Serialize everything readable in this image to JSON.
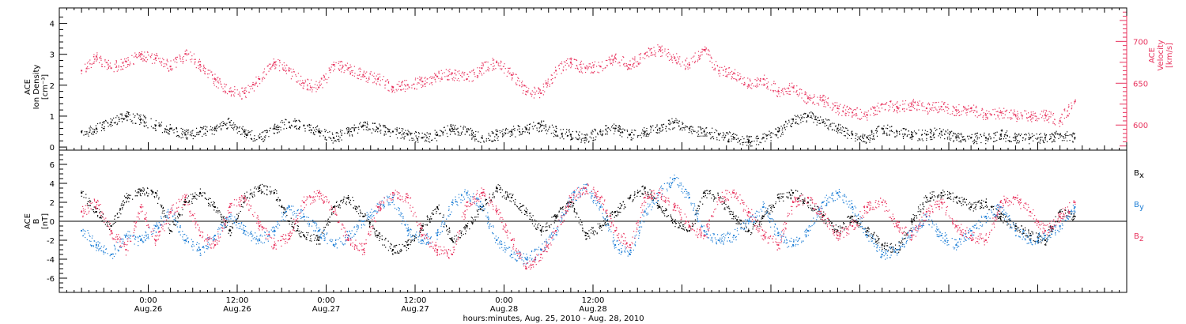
{
  "chart_data": [
    {
      "type": "scatter",
      "panel": "top",
      "ylabel_left": [
        "ACE",
        "Ion Density",
        "[cm⁻³]"
      ],
      "ylabel_right": [
        "ACE",
        "Velocity",
        "[km/s]"
      ],
      "ylim_left": [
        -0.1,
        4.5
      ],
      "ylim_right": [
        570,
        740
      ],
      "yticks_left": [
        "0",
        "1",
        "2",
        "3",
        "4"
      ],
      "yticks_right": [
        "600",
        "650",
        "700"
      ],
      "grid": false,
      "colors": {
        "density": "#000000",
        "velocity": "#e8335e"
      },
      "series": [
        {
          "name": "",
          "axis": "left",
          "color": "#000000",
          "x": [
            -9,
            -7,
            -5,
            -3,
            -1,
            1,
            3,
            5,
            7,
            9,
            11,
            13,
            15,
            17,
            19,
            21,
            23,
            25,
            27,
            29,
            31,
            33,
            35,
            37,
            39,
            41,
            43,
            45,
            47,
            49,
            51,
            53,
            55,
            57,
            59,
            61,
            63,
            65,
            67,
            69,
            71,
            73,
            75,
            77,
            79,
            81,
            83,
            85,
            87,
            89,
            91,
            93,
            95,
            97,
            99,
            101,
            103,
            105,
            107,
            109,
            111,
            113,
            115,
            117,
            119,
            121,
            123,
            125
          ],
          "values": [
            0.5,
            0.6,
            0.8,
            1.0,
            0.9,
            0.7,
            0.6,
            0.4,
            0.5,
            0.6,
            0.8,
            0.5,
            0.3,
            0.6,
            0.8,
            0.7,
            0.5,
            0.3,
            0.5,
            0.7,
            0.6,
            0.5,
            0.4,
            0.3,
            0.4,
            0.6,
            0.5,
            0.3,
            0.4,
            0.5,
            0.6,
            0.7,
            0.5,
            0.4,
            0.3,
            0.5,
            0.6,
            0.4,
            0.5,
            0.6,
            0.8,
            0.6,
            0.5,
            0.4,
            0.3,
            0.2,
            0.3,
            0.5,
            0.9,
            1.0,
            0.8,
            0.6,
            0.4,
            0.3,
            0.6,
            0.5,
            0.4,
            0.4,
            0.5,
            0.3,
            0.3,
            0.3,
            0.4,
            0.3,
            0.3,
            0.3,
            0.4,
            0.3
          ]
        },
        {
          "name": "",
          "axis": "right",
          "color": "#e8335e",
          "x": [
            -9,
            -7,
            -5,
            -3,
            -1,
            1,
            3,
            5,
            7,
            9,
            11,
            13,
            15,
            17,
            19,
            21,
            23,
            25,
            27,
            29,
            31,
            33,
            35,
            37,
            39,
            41,
            43,
            45,
            47,
            49,
            51,
            53,
            55,
            57,
            59,
            61,
            63,
            65,
            67,
            69,
            71,
            73,
            75,
            77,
            79,
            81,
            83,
            85,
            87,
            89,
            91,
            93,
            95,
            97,
            99,
            101,
            103,
            105,
            107,
            109,
            111,
            113,
            115,
            117,
            119,
            121,
            123,
            125
          ],
          "values": [
            665,
            682,
            668,
            676,
            684,
            680,
            670,
            685,
            672,
            655,
            640,
            638,
            655,
            675,
            665,
            650,
            645,
            672,
            668,
            660,
            655,
            645,
            648,
            652,
            658,
            662,
            655,
            668,
            675,
            660,
            640,
            638,
            665,
            675,
            668,
            670,
            680,
            672,
            685,
            690,
            680,
            672,
            690,
            665,
            662,
            648,
            655,
            640,
            645,
            632,
            630,
            620,
            615,
            612,
            625,
            622,
            625,
            620,
            622,
            618,
            620,
            612,
            615,
            612,
            610,
            612,
            605,
            628
          ]
        }
      ]
    },
    {
      "type": "scatter",
      "panel": "bottom",
      "ylabel_left": [
        "ACE",
        "B",
        "[nT]"
      ],
      "ylim": [
        -7.5,
        7.5
      ],
      "yticks": [
        "-6",
        "-4",
        "-2",
        "0",
        "2",
        "4",
        "6"
      ],
      "xlim": [
        -12,
        132
      ],
      "xticks": [
        {
          "at": 0,
          "time": "0:00",
          "date": "Aug.26"
        },
        {
          "at": 12,
          "time": "12:00",
          "date": "Aug.26"
        },
        {
          "at": 24,
          "time": "0:00",
          "date": "Aug.27"
        },
        {
          "at": 36,
          "time": "12:00",
          "date": "Aug.27"
        },
        {
          "at": 48,
          "time": "0:00",
          "date": "Aug.28"
        },
        {
          "at": 60,
          "time": "12:00",
          "date": "Aug.28"
        }
      ],
      "xlabel": "hours:minutes, Aug. 25, 2010 - Aug. 28, 2010",
      "grid": false,
      "series": [
        {
          "name": "Bx",
          "label_main": "B",
          "label_sub": "x",
          "color": "#000000",
          "x": [
            -9,
            -7,
            -5,
            -3,
            -1,
            1,
            3,
            5,
            7,
            9,
            11,
            13,
            15,
            17,
            19,
            21,
            23,
            25,
            27,
            29,
            31,
            33,
            35,
            37,
            39,
            41,
            43,
            45,
            47,
            49,
            51,
            53,
            55,
            57,
            59,
            61,
            63,
            65,
            67,
            69,
            71,
            73,
            75,
            77,
            79,
            81,
            83,
            85,
            87,
            89,
            91,
            93,
            95,
            97,
            99,
            101,
            103,
            105,
            107,
            109,
            111,
            113,
            115,
            117,
            119,
            121,
            123,
            125
          ],
          "values": [
            3.0,
            1.0,
            -0.5,
            2.5,
            3.2,
            3.0,
            -1.0,
            2.0,
            3.0,
            1.5,
            -1.0,
            2.5,
            3.5,
            3.0,
            0.0,
            -1.5,
            -2.0,
            1.5,
            2.5,
            0.5,
            -1.5,
            -3.0,
            -2.5,
            -0.5,
            1.5,
            -2.0,
            -0.5,
            1.5,
            3.5,
            2.5,
            1.0,
            -1.0,
            0.5,
            2.0,
            -1.5,
            -0.5,
            1.0,
            2.5,
            3.5,
            1.5,
            0.0,
            -1.0,
            3.0,
            2.5,
            0.5,
            -1.0,
            0.5,
            2.5,
            3.0,
            2.0,
            0.5,
            -1.0,
            0.5,
            -1.0,
            -2.5,
            -3.0,
            0.0,
            2.5,
            3.0,
            2.5,
            1.5,
            2.0,
            0.5,
            -0.5,
            -1.5,
            -2.0,
            1.0,
            0.5
          ]
        },
        {
          "name": "By",
          "label_main": "B",
          "label_sub": "y",
          "color": "#1f7fd6",
          "x": [
            -9,
            -7,
            -5,
            -3,
            -1,
            1,
            3,
            5,
            7,
            9,
            11,
            13,
            15,
            17,
            19,
            21,
            23,
            25,
            27,
            29,
            31,
            33,
            35,
            37,
            39,
            41,
            43,
            45,
            47,
            49,
            51,
            53,
            55,
            57,
            59,
            61,
            63,
            65,
            67,
            69,
            71,
            73,
            75,
            77,
            79,
            81,
            83,
            85,
            87,
            89,
            91,
            93,
            95,
            97,
            99,
            101,
            103,
            105,
            107,
            109,
            111,
            113,
            115,
            117,
            119,
            121,
            123,
            125
          ],
          "values": [
            -1.0,
            -2.5,
            -3.5,
            -1.5,
            -2.0,
            -0.5,
            1.0,
            -2.0,
            -3.0,
            -1.5,
            0.5,
            -1.0,
            -2.0,
            -1.0,
            1.5,
            0.5,
            -1.0,
            -2.5,
            -1.5,
            0.0,
            1.5,
            2.5,
            -1.0,
            -2.0,
            -1.5,
            2.0,
            3.0,
            1.5,
            -2.0,
            -3.5,
            -4.0,
            -3.0,
            -1.0,
            2.5,
            3.5,
            1.5,
            -2.5,
            -3.5,
            1.0,
            3.0,
            4.5,
            2.5,
            -1.0,
            -2.0,
            -1.5,
            0.0,
            1.5,
            -1.5,
            -2.5,
            -1.0,
            2.0,
            3.0,
            1.5,
            -1.5,
            -3.5,
            -3.0,
            -1.0,
            0.5,
            -1.5,
            -2.5,
            -1.0,
            0.5,
            1.5,
            -1.0,
            -2.0,
            -1.5,
            -0.5,
            1.5
          ]
        },
        {
          "name": "Bz",
          "label_main": "B",
          "label_sub": "z",
          "color": "#e8335e",
          "x": [
            -9,
            -7,
            -5,
            -3,
            -1,
            1,
            3,
            5,
            7,
            9,
            11,
            13,
            15,
            17,
            19,
            21,
            23,
            25,
            27,
            29,
            31,
            33,
            35,
            37,
            39,
            41,
            43,
            45,
            47,
            49,
            51,
            53,
            55,
            57,
            59,
            61,
            63,
            65,
            67,
            69,
            71,
            73,
            75,
            77,
            79,
            81,
            83,
            85,
            87,
            89,
            91,
            93,
            95,
            97,
            99,
            101,
            103,
            105,
            107,
            109,
            111,
            113,
            115,
            117,
            119,
            121,
            123,
            125
          ],
          "values": [
            1.0,
            2.0,
            -1.0,
            -3.0,
            1.5,
            -2.0,
            1.0,
            2.5,
            -1.5,
            -2.5,
            1.5,
            2.5,
            -0.5,
            -2.5,
            -1.5,
            2.0,
            3.0,
            1.0,
            -2.0,
            -3.0,
            1.5,
            3.0,
            2.5,
            -1.5,
            -3.0,
            -3.5,
            2.0,
            3.0,
            1.0,
            -2.0,
            -5.0,
            -3.5,
            -1.0,
            2.5,
            3.5,
            2.5,
            -1.0,
            -2.5,
            2.5,
            3.0,
            1.5,
            -0.5,
            -1.5,
            2.5,
            3.0,
            1.0,
            -1.5,
            -2.5,
            2.0,
            2.5,
            0.5,
            -1.5,
            -0.5,
            1.5,
            2.0,
            -0.5,
            -1.5,
            1.0,
            2.0,
            -0.5,
            -1.5,
            -2.0,
            2.0,
            2.5,
            1.0,
            -1.0,
            0.5,
            2.0
          ]
        }
      ]
    }
  ]
}
